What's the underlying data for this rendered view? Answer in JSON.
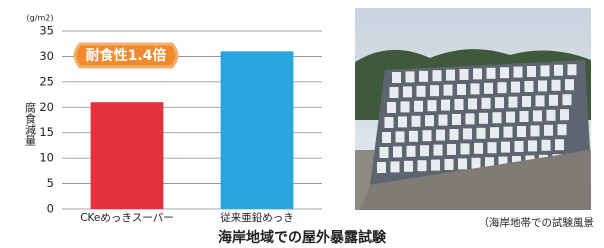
{
  "chart_data": {
    "type": "bar",
    "unit": "(g/m2)",
    "y_label": "腐食減量",
    "annotation": "耐食性1.4倍",
    "categories": [
      "CKeめっきスーパー",
      "従来亜鉛めっき"
    ],
    "values": [
      21,
      31
    ],
    "colors": [
      "#e2323a",
      "#2aa6df"
    ],
    "ylim": [
      0,
      35
    ],
    "yticks": [
      0,
      5,
      10,
      15,
      20,
      25,
      30,
      35
    ],
    "grid": true
  },
  "photo_caption": "（海岸地帯での試験風景",
  "caption": "海岸地域での屋外暴露試験"
}
